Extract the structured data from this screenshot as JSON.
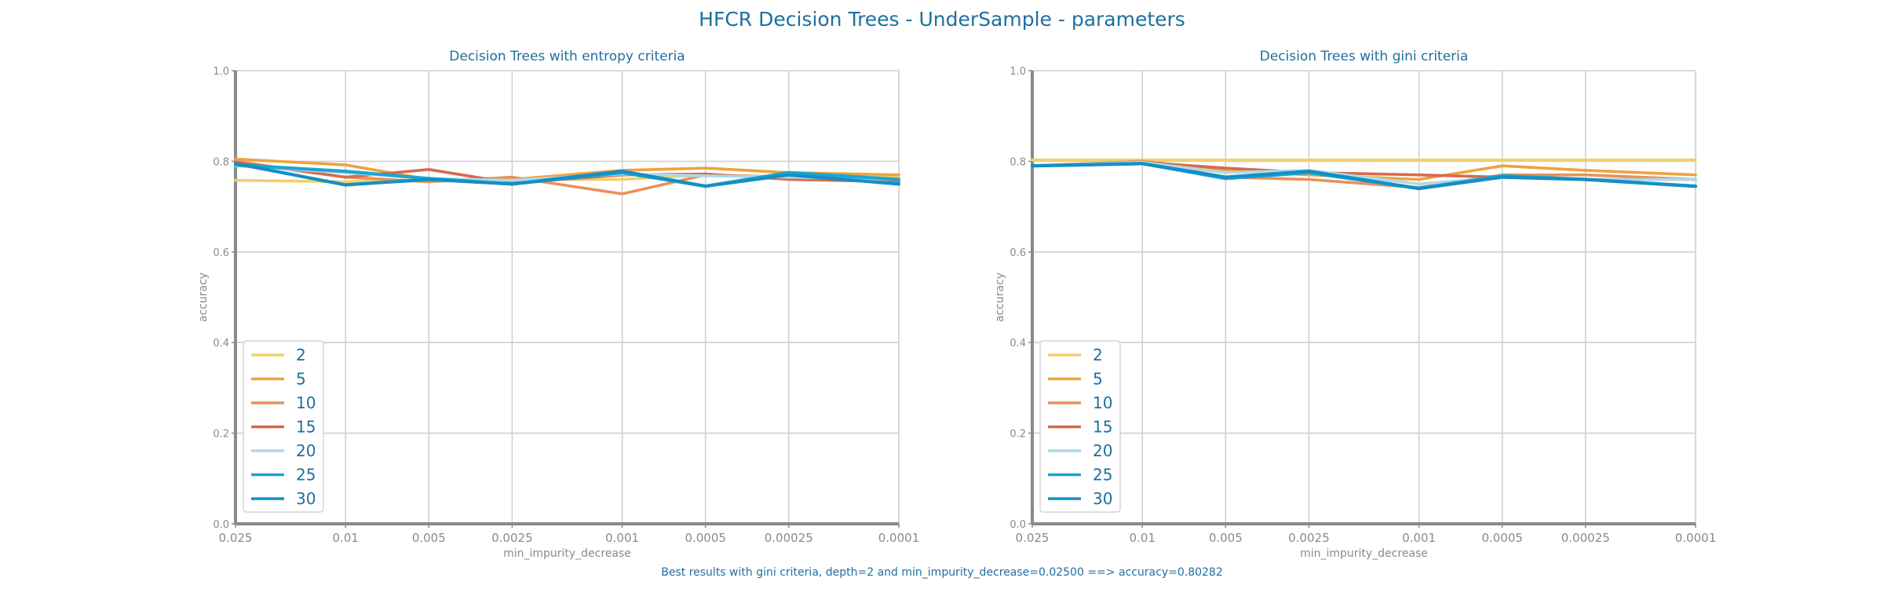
{
  "page": {
    "suptitle": "HFCR Decision Trees - UnderSample - parameters",
    "footer": "Best results with gini criteria, depth=2 and min_impurity_decrease=0.02500 ==> accuracy=0.80282"
  },
  "colors": {
    "2": "#f0d06a",
    "5": "#eea33c",
    "10": "#e8915a",
    "15": "#d9694e",
    "20": "#acdbe7",
    "25": "#1aa5d4",
    "30": "#148fc6",
    "text": "#1f6f9f",
    "axis": "#8a8a8a",
    "grid": "#d0d0d0"
  },
  "chart_data": [
    {
      "type": "line",
      "title": "Decision Trees with entropy criteria",
      "xlabel": "min_impurity_decrease",
      "ylabel": "accuracy",
      "ylim": [
        0,
        1
      ],
      "x_scale": "log (inverted)",
      "grid": true,
      "legend": "lower-left",
      "x": [
        0.025,
        0.01,
        0.005,
        0.0025,
        0.001,
        0.0005,
        0.00025,
        0.0001
      ],
      "xtick_labels": [
        "0.025",
        "0.01",
        "0.005",
        "0.0025",
        "0.001",
        "0.0005",
        "0.00025",
        "0.0001"
      ],
      "yticks": [
        "0.0",
        "0.2",
        "0.4",
        "0.6",
        "0.8",
        "1.0"
      ],
      "series": [
        {
          "name": "2",
          "values": [
            0.758,
            0.755,
            0.76,
            0.76,
            0.76,
            0.77,
            0.765,
            0.765
          ]
        },
        {
          "name": "5",
          "values": [
            0.805,
            0.792,
            0.76,
            0.76,
            0.78,
            0.785,
            0.775,
            0.77
          ]
        },
        {
          "name": "10",
          "values": [
            0.8,
            0.765,
            0.755,
            0.765,
            0.728,
            0.77,
            0.765,
            0.76
          ]
        },
        {
          "name": "15",
          "values": [
            0.798,
            0.765,
            0.782,
            0.752,
            0.77,
            0.772,
            0.76,
            0.755
          ]
        },
        {
          "name": "20",
          "values": [
            0.79,
            0.775,
            0.762,
            0.758,
            0.772,
            0.768,
            0.765,
            0.76
          ]
        },
        {
          "name": "25",
          "values": [
            0.792,
            0.778,
            0.762,
            0.75,
            0.775,
            0.745,
            0.775,
            0.76
          ]
        },
        {
          "name": "30",
          "values": [
            0.795,
            0.748,
            0.76,
            0.75,
            0.778,
            0.745,
            0.77,
            0.75
          ]
        }
      ]
    },
    {
      "type": "line",
      "title": "Decision Trees with gini criteria",
      "xlabel": "min_impurity_decrease",
      "ylabel": "accuracy",
      "ylim": [
        0,
        1
      ],
      "x_scale": "log (inverted)",
      "grid": true,
      "legend": "lower-left",
      "x": [
        0.025,
        0.01,
        0.005,
        0.0025,
        0.001,
        0.0005,
        0.00025,
        0.0001
      ],
      "xtick_labels": [
        "0.025",
        "0.01",
        "0.005",
        "0.0025",
        "0.001",
        "0.0005",
        "0.00025",
        "0.0001"
      ],
      "yticks": [
        "0.0",
        "0.2",
        "0.4",
        "0.6",
        "0.8",
        "1.0"
      ],
      "series": [
        {
          "name": "2",
          "values": [
            0.803,
            0.803,
            0.803,
            0.803,
            0.803,
            0.803,
            0.803,
            0.803
          ]
        },
        {
          "name": "5",
          "values": [
            0.79,
            0.8,
            0.78,
            0.77,
            0.76,
            0.79,
            0.78,
            0.77
          ]
        },
        {
          "name": "10",
          "values": [
            0.79,
            0.8,
            0.765,
            0.76,
            0.742,
            0.77,
            0.77,
            0.76
          ]
        },
        {
          "name": "15",
          "values": [
            0.79,
            0.798,
            0.785,
            0.775,
            0.77,
            0.765,
            0.76,
            0.76
          ]
        },
        {
          "name": "20",
          "values": [
            0.79,
            0.798,
            0.775,
            0.78,
            0.75,
            0.765,
            0.76,
            0.76
          ]
        },
        {
          "name": "25",
          "values": [
            0.79,
            0.795,
            0.762,
            0.775,
            0.74,
            0.768,
            0.76,
            0.745
          ]
        },
        {
          "name": "30",
          "values": [
            0.79,
            0.795,
            0.765,
            0.778,
            0.74,
            0.765,
            0.76,
            0.745
          ]
        }
      ]
    }
  ]
}
